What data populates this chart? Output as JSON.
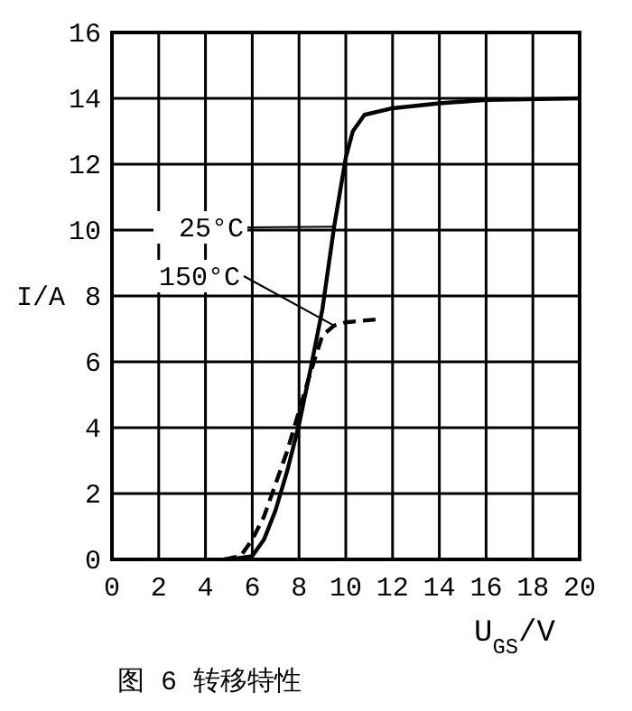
{
  "chart_data": {
    "type": "line",
    "xlabel": "U$_{GS}$/V",
    "ylabel": "I/A",
    "annotations": [
      "图 6 转移特性"
    ],
    "xlim": [
      0,
      20
    ],
    "ylim": [
      0,
      16
    ],
    "xticks": [
      0,
      2,
      4,
      6,
      8,
      10,
      12,
      14,
      16,
      18,
      20
    ],
    "yticks": [
      0,
      2,
      4,
      6,
      8,
      10,
      12,
      14,
      16
    ],
    "grid": true,
    "marker": "none",
    "series": [
      {
        "name": "25°C",
        "color": "#000000",
        "line_style": "solid",
        "x": [
          5,
          6,
          6.5,
          7,
          7.5,
          8,
          8.5,
          9,
          9.5,
          10,
          10.3,
          10.8,
          12,
          14,
          16,
          20
        ],
        "values": [
          0,
          0.1,
          0.6,
          1.5,
          2.7,
          4.1,
          5.8,
          7.6,
          10.1,
          12.2,
          13.0,
          13.5,
          13.7,
          13.85,
          13.95,
          14.0
        ]
      },
      {
        "name": "150°C",
        "color": "#000000",
        "line_style": "dashed",
        "x": [
          4.8,
          5.5,
          6,
          6.5,
          7,
          7.5,
          8,
          8.5,
          9,
          9.5,
          10,
          11.5
        ],
        "values": [
          0,
          0.1,
          0.6,
          1.3,
          2.3,
          3.3,
          4.5,
          5.7,
          6.8,
          7.1,
          7.2,
          7.3
        ]
      }
    ]
  }
}
